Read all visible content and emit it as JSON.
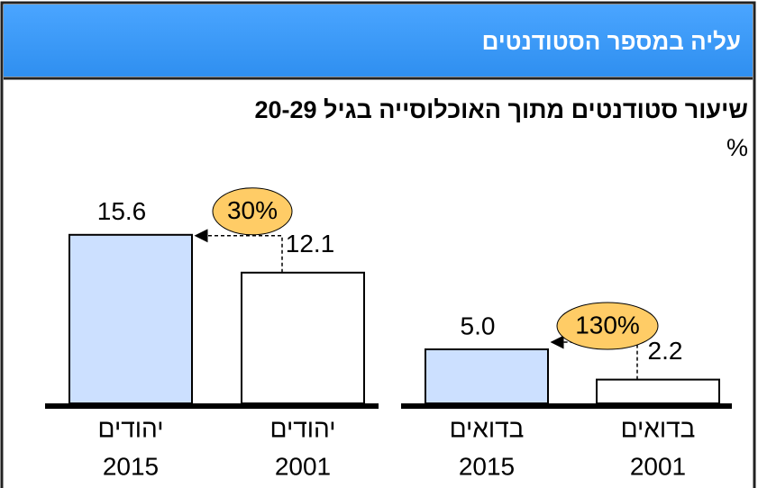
{
  "header": {
    "title": "עליה במספר הסטודנטים"
  },
  "chart_data": {
    "type": "bar",
    "title": "שיעור סטודנטים מתוך האוכלוסייה בגיל 20-29",
    "y_label": "%",
    "categories": [
      [
        "יהודים",
        "2015"
      ],
      [
        "יהודים",
        "2001"
      ],
      [
        "בדואים",
        "2015"
      ],
      [
        "בדואים",
        "2001"
      ]
    ],
    "values": [
      15.6,
      12.1,
      5.0,
      2.2
    ],
    "value_labels": [
      "15.6",
      "12.1",
      "5.0",
      "2.2"
    ],
    "colors": [
      "#cce0ff",
      "#ffffff",
      "#cce0ff",
      "#ffffff"
    ],
    "ylim": [
      0,
      16
    ],
    "annotations": [
      "30%",
      "130%"
    ]
  }
}
